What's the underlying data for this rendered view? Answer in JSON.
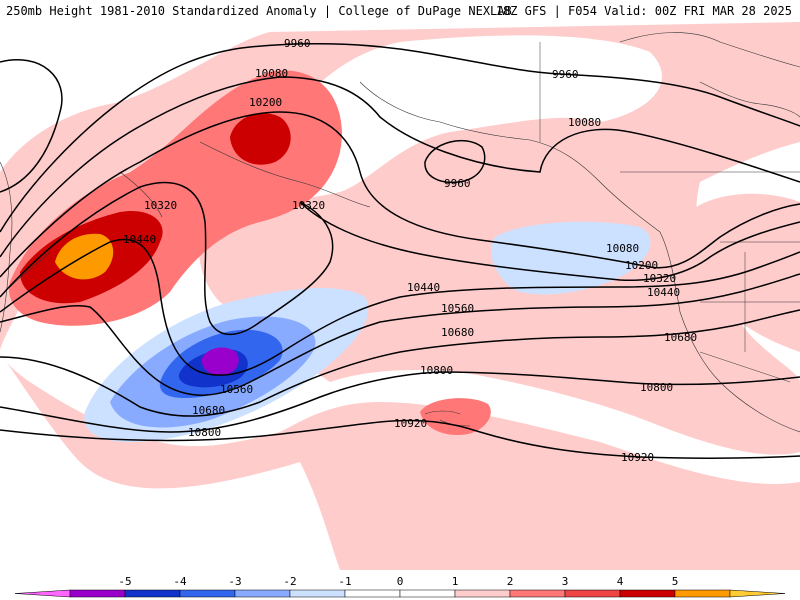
{
  "header": {
    "title": "250mb Height 1981-2010 Standardized Anomaly | College of DuPage NEXLAB",
    "run_info": "18Z GFS | F054 Valid: 00Z FRI MAR 28 2025"
  },
  "map": {
    "region": "North Pacific",
    "contour_labels": [
      "9960",
      "9960",
      "9960",
      "10080",
      "10080",
      "10080",
      "10200",
      "10200",
      "10320",
      "10320",
      "10320",
      "10440",
      "10440",
      "10440",
      "10560",
      "10560",
      "10680",
      "10680",
      "10680",
      "10800",
      "10800",
      "10800",
      "10920",
      "10920"
    ]
  },
  "colorbar": {
    "ticks": [
      "-5",
      "-4",
      "-3",
      "-2",
      "-1",
      "0",
      "1",
      "2",
      "3",
      "4",
      "5"
    ],
    "colors": [
      "#ff66ff",
      "#9900cc",
      "#1133cc",
      "#3366ee",
      "#88aaff",
      "#cce0ff",
      "#ffffff",
      "#ffffff",
      "#ffcccc",
      "#ff7777",
      "#ee4444",
      "#cc0000",
      "#ff9900",
      "#ffcc33"
    ]
  },
  "anomaly_colors": {
    "pos1": "#ffcccc",
    "pos2": "#ff7777",
    "pos3": "#cc0000",
    "pos4": "#ff9900",
    "neg1": "#cce0ff",
    "neg2": "#88aaff",
    "neg3": "#3366ee",
    "neg4": "#1133cc",
    "neg5": "#9900cc"
  }
}
